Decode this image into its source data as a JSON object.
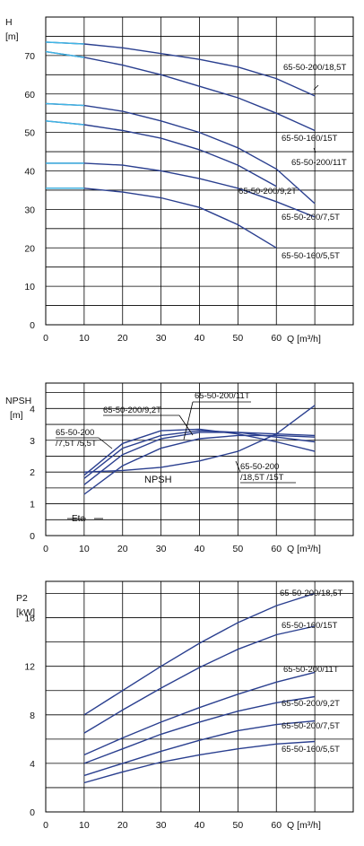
{
  "colors": {
    "curve": "#2a3f8f",
    "curve_light": "#3fb7e6",
    "grid": "#000000",
    "text": "#111111"
  },
  "chart_data": [
    {
      "type": "line",
      "ylabel_lines": [
        "H",
        "[m]"
      ],
      "xlabel": "Q [m³/h]",
      "xlim": [
        0,
        80
      ],
      "ylim": [
        0,
        80
      ],
      "xticks": [
        0,
        10,
        20,
        30,
        40,
        50,
        60
      ],
      "yticks": [
        0,
        10,
        20,
        30,
        40,
        50,
        60,
        70
      ],
      "grid": true,
      "series": [
        {
          "name": "65-50-200/18,5T",
          "x": [
            0,
            10,
            20,
            30,
            40,
            50,
            60,
            70
          ],
          "y": [
            73.5,
            73,
            72,
            70.5,
            69,
            67,
            64,
            59.5
          ]
        },
        {
          "name": "65-50-160/15T",
          "x": [
            0,
            10,
            20,
            30,
            40,
            50,
            60,
            70
          ],
          "y": [
            71,
            69.5,
            67.5,
            65,
            62,
            59,
            55,
            50.5
          ]
        },
        {
          "name": "65-50-200/11T",
          "x": [
            0,
            10,
            20,
            30,
            40,
            50,
            60,
            70
          ],
          "y": [
            57.5,
            57,
            55.5,
            53,
            50,
            46,
            40.5,
            31.5
          ]
        },
        {
          "name": "65-50-200/9,2T",
          "x": [
            0,
            10,
            20,
            30,
            40,
            50,
            60
          ],
          "y": [
            53,
            52,
            50.5,
            48.5,
            45.5,
            41.5,
            36
          ]
        },
        {
          "name": "65-50-200/7,5T",
          "x": [
            0,
            10,
            20,
            30,
            40,
            50,
            60,
            70
          ],
          "y": [
            42,
            42,
            41.5,
            40,
            38,
            35.5,
            32,
            28
          ]
        },
        {
          "name": "65-50-160/5,5T",
          "x": [
            0,
            10,
            20,
            30,
            40,
            50,
            60
          ],
          "y": [
            35.5,
            35.5,
            34.5,
            33,
            30.5,
            26,
            20
          ]
        }
      ],
      "series_labels": [
        "65-50-200/18,5T",
        "65-50-160/15T",
        "65-50-200/11T",
        "65-50-200/9,2T",
        "65-50-200/7,5T",
        "65-50-160/5,5T"
      ]
    },
    {
      "type": "line",
      "ylabel_lines": [
        "NPSH",
        "[m]"
      ],
      "xlabel": "Q [m³/h]",
      "xlim": [
        0,
        80
      ],
      "ylim": [
        0,
        4.8
      ],
      "xticks": [
        0,
        10,
        20,
        30,
        40,
        50,
        60
      ],
      "yticks": [
        0,
        1,
        2,
        3,
        4
      ],
      "grid": true,
      "series": [
        {
          "name": "NPSH",
          "x": [
            10,
            20,
            30,
            40,
            50,
            60,
            70
          ],
          "y": [
            2.0,
            2.05,
            2.15,
            2.35,
            2.65,
            3.2,
            4.1
          ]
        },
        {
          "name": "65-50-200/9,2T",
          "x": [
            10,
            20,
            30,
            40,
            50,
            60,
            70
          ],
          "y": [
            1.9,
            2.9,
            3.3,
            3.35,
            3.2,
            2.95,
            2.65
          ]
        },
        {
          "name": "65-50-200/11T",
          "x": [
            10,
            20,
            30,
            40,
            50,
            60,
            70
          ],
          "y": [
            1.8,
            2.75,
            3.15,
            3.3,
            3.25,
            3.1,
            2.95
          ]
        },
        {
          "name": "65-50-200/7,5T /5,5T",
          "x": [
            10,
            20,
            30,
            40,
            50,
            60,
            70
          ],
          "y": [
            1.6,
            2.55,
            3.05,
            3.25,
            3.25,
            3.2,
            3.15
          ]
        },
        {
          "name": "65-50-200/18,5T /15T",
          "x": [
            10,
            20,
            30,
            40,
            50,
            60,
            70
          ],
          "y": [
            1.3,
            2.2,
            2.75,
            3.05,
            3.15,
            3.15,
            3.1
          ]
        }
      ],
      "labels": {
        "npsh": "NPSH",
        "eta": "Eta",
        "l9": "65-50-200/9,2T",
        "l11": "65-50-200/11T",
        "l75_a": "65-50-200",
        "l75_b": "/7,5T /5,5T",
        "l185_a": "65-50-200",
        "l185_b": "/18,5T /15T"
      }
    },
    {
      "type": "line",
      "ylabel_lines": [
        "P2",
        "[kW]"
      ],
      "xlabel": "Q [m³/h]",
      "xlim": [
        0,
        80
      ],
      "ylim": [
        0,
        19
      ],
      "xticks": [
        0,
        10,
        20,
        30,
        40,
        50,
        60
      ],
      "yticks": [
        0,
        4,
        8,
        12,
        16
      ],
      "grid": true,
      "series": [
        {
          "name": "65-50-200/18,5T",
          "x": [
            10,
            20,
            30,
            40,
            50,
            60,
            70
          ],
          "y": [
            8,
            10,
            12,
            13.9,
            15.6,
            17,
            18
          ]
        },
        {
          "name": "65-50-160/15T",
          "x": [
            10,
            20,
            30,
            40,
            50,
            60,
            70
          ],
          "y": [
            6.5,
            8.4,
            10.2,
            11.9,
            13.4,
            14.6,
            15.3
          ]
        },
        {
          "name": "65-50-200/11T",
          "x": [
            10,
            20,
            30,
            40,
            50,
            60,
            70
          ],
          "y": [
            4.7,
            6.1,
            7.4,
            8.6,
            9.7,
            10.7,
            11.5
          ]
        },
        {
          "name": "65-50-200/9,2T",
          "x": [
            10,
            20,
            30,
            40,
            50,
            60,
            70
          ],
          "y": [
            4,
            5.2,
            6.4,
            7.4,
            8.3,
            9,
            9.5
          ]
        },
        {
          "name": "65-50-200/7,5T",
          "x": [
            10,
            20,
            30,
            40,
            50,
            60,
            70
          ],
          "y": [
            3,
            4,
            5,
            5.9,
            6.7,
            7.2,
            7.5
          ]
        },
        {
          "name": "65-50-160/5,5T",
          "x": [
            10,
            20,
            30,
            40,
            50,
            60,
            70
          ],
          "y": [
            2.4,
            3.3,
            4.1,
            4.7,
            5.2,
            5.6,
            5.8
          ]
        }
      ],
      "series_labels": [
        "65-50-200/18,5T",
        "65-50-160/15T",
        "65-50-200/11T",
        "65-50-200/9,2T",
        "65-50-200/7,5T",
        "65-50-160/5,5T"
      ]
    }
  ]
}
